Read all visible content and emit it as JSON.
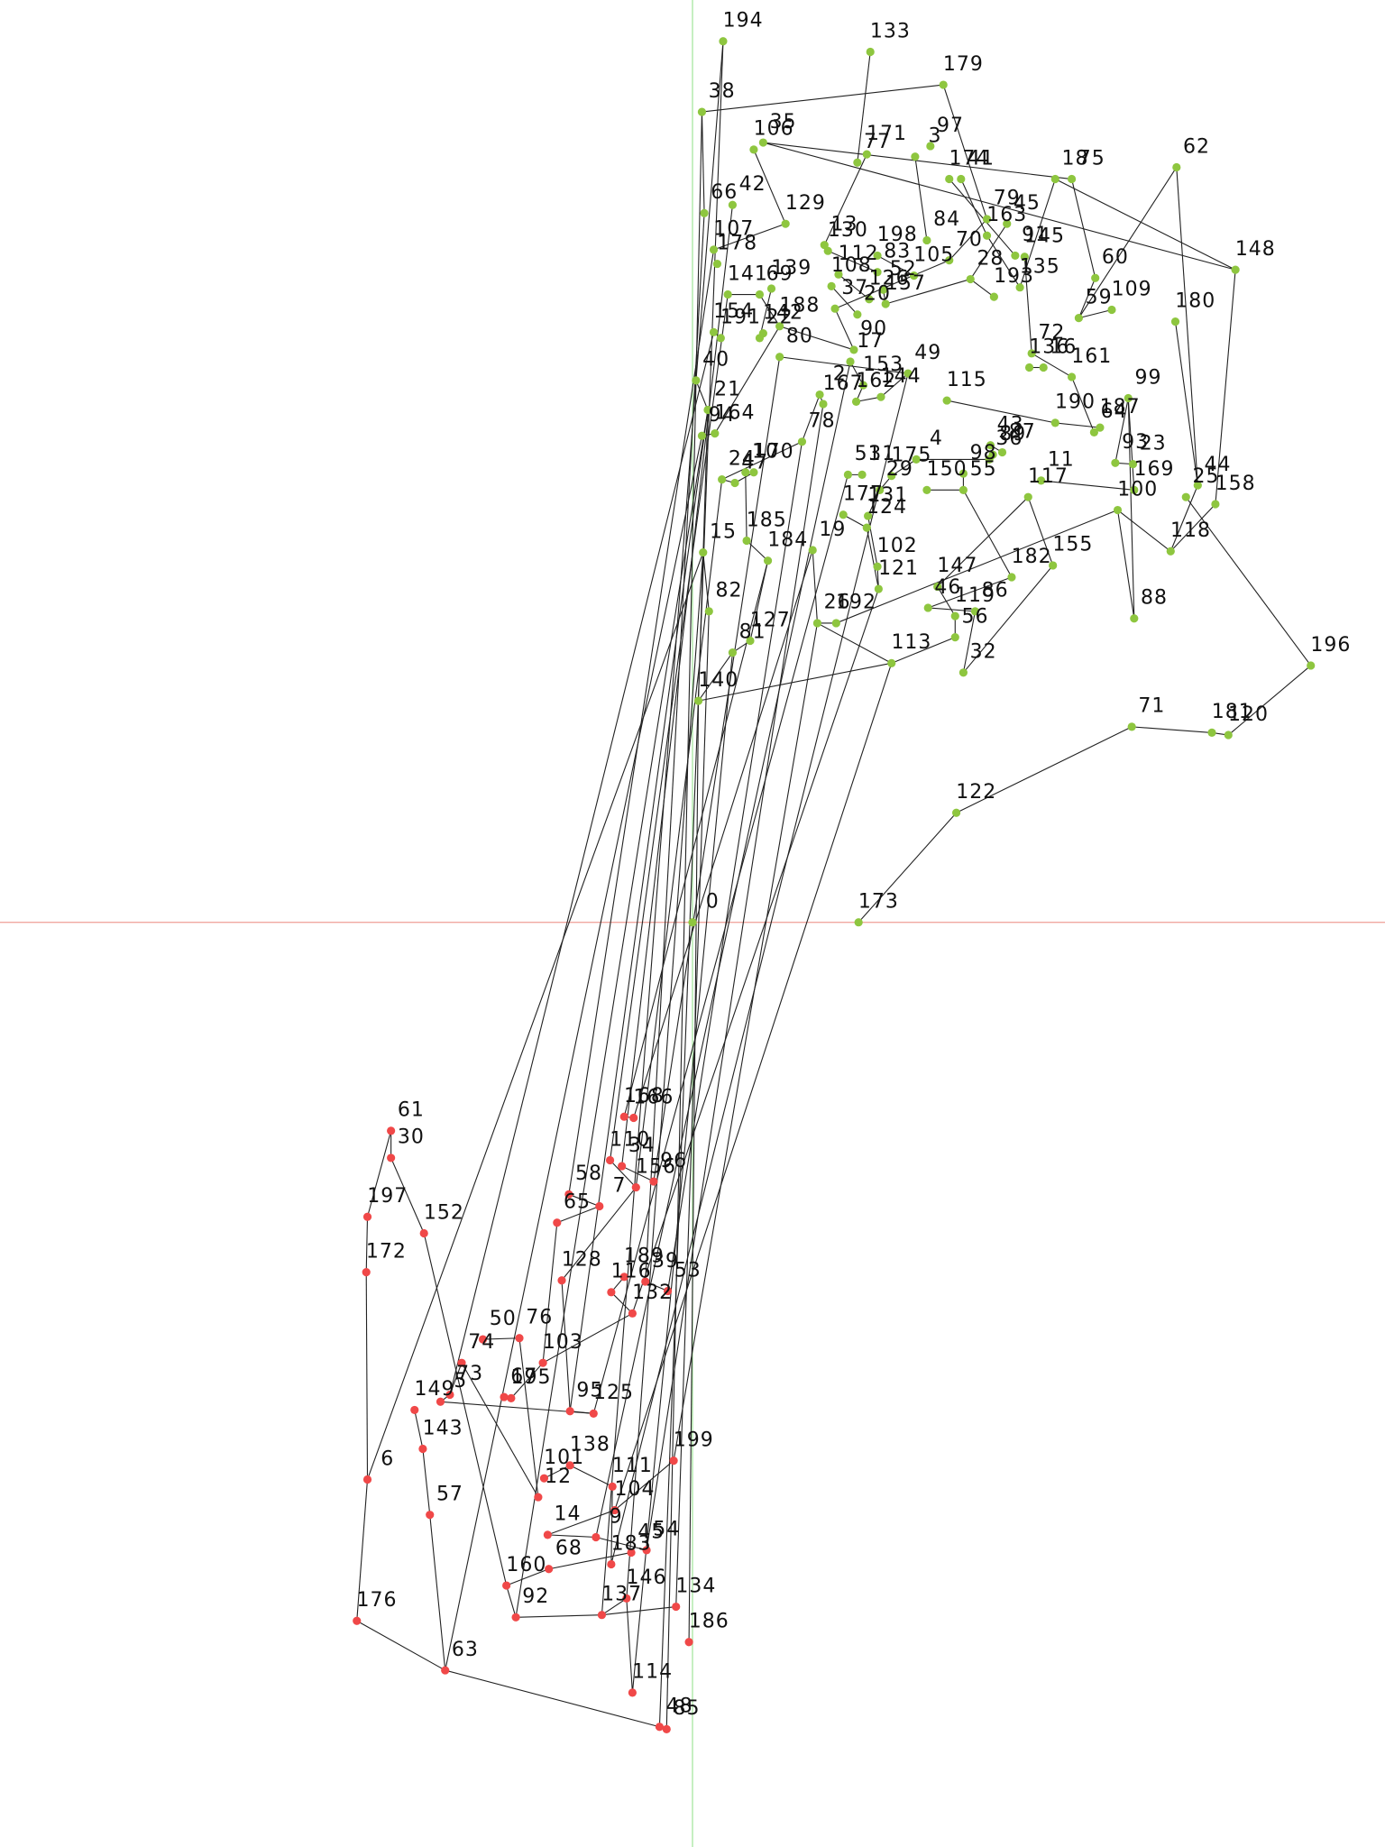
{
  "chart_data": {
    "type": "scatter",
    "xlim": [
      -588,
      588
    ],
    "ylim": [
      -785,
      783
    ],
    "x_axis_color": "#f0a8a0",
    "y_axis_color": "#a8e6a0",
    "edge_color": "#222222",
    "series": [
      {
        "color": "#8ec63f",
        "labels": [
          "194",
          "133",
          "179",
          "38",
          "35",
          "106",
          "171",
          "77",
          "97",
          "3",
          "174",
          "41",
          "75",
          "18",
          "62",
          "66",
          "42",
          "129",
          "79",
          "45",
          "163",
          "13",
          "130",
          "198",
          "84",
          "70",
          "91",
          "145",
          "107",
          "178",
          "112",
          "83",
          "105",
          "28",
          "135",
          "60",
          "141",
          "69",
          "139",
          "108",
          "52",
          "37",
          "157",
          "20",
          "126",
          "193",
          "59",
          "109",
          "148",
          "180",
          "154",
          "191",
          "22",
          "142",
          "188",
          "90",
          "17",
          "80",
          "72",
          "136",
          "16",
          "161",
          "49",
          "153",
          "40",
          "167",
          "2",
          "162",
          "144",
          "115",
          "99",
          "21",
          "190",
          "187",
          "64",
          "94",
          "164",
          "78",
          "43",
          "87",
          "89",
          "36",
          "93",
          "23",
          "4",
          "51",
          "31",
          "175",
          "98",
          "24",
          "47",
          "10",
          "170",
          "29",
          "150",
          "55",
          "11",
          "117",
          "169",
          "44",
          "25",
          "158",
          "100",
          "177",
          "131",
          "124",
          "15",
          "185",
          "184",
          "19",
          "102",
          "155",
          "182",
          "118",
          "121",
          "147",
          "46",
          "119",
          "86",
          "88",
          "82",
          "26",
          "192",
          "56",
          "127",
          "81",
          "113",
          "32",
          "196",
          "140",
          "71",
          "181",
          "120",
          "122",
          "173",
          "0"
        ],
        "x": [
          26,
          151,
          213,
          8,
          60,
          52,
          148,
          140,
          202,
          189,
          218,
          228,
          322,
          308,
          411,
          10,
          34,
          79,
          250,
          267,
          250,
          112,
          115,
          157,
          199,
          218,
          274,
          282,
          18,
          21,
          124,
          157,
          188,
          236,
          278,
          342,
          30,
          57,
          67,
          118,
          162,
          121,
          164,
          140,
          150,
          256,
          328,
          356,
          461,
          410,
          18,
          24,
          57,
          60,
          74,
          137,
          134,
          74,
          288,
          286,
          298,
          322,
          183,
          145,
          3,
          111,
          108,
          139,
          160,
          216,
          370,
          13,
          308,
          346,
          341,
          8,
          19,
          93,
          253,
          263,
          255,
          252,
          359,
          374,
          190,
          132,
          144,
          169,
          230,
          25,
          36,
          45,
          52,
          159,
          199,
          230,
          296,
          285,
          375,
          429,
          419,
          444,
          361,
          128,
          149,
          148,
          9,
          46,
          64,
          102,
          157,
          306,
          271,
          406,
          158,
          208,
          200,
          223,
          240,
          375,
          14,
          106,
          122,
          223,
          49,
          34,
          169,
          230,
          525,
          5,
          373,
          441,
          455,
          224,
          141,
          0
        ],
        "y": [
          748,
          739,
          711,
          688,
          662,
          656,
          652,
          645,
          659,
          650,
          631,
          631,
          631,
          631,
          641,
          602,
          609,
          593,
          597,
          593,
          583,
          575,
          570,
          566,
          579,
          562,
          566,
          565,
          571,
          559,
          550,
          552,
          549,
          546,
          539,
          547,
          533,
          533,
          538,
          540,
          537,
          521,
          525,
          516,
          529,
          531,
          513,
          520,
          554,
          510,
          501,
          496,
          496,
          500,
          506,
          486,
          476,
          480,
          483,
          471,
          471,
          463,
          466,
          456,
          460,
          440,
          448,
          442,
          446,
          443,
          445,
          435,
          424,
          420,
          416,
          413,
          415,
          408,
          405,
          399,
          397,
          393,
          390,
          389,
          393,
          380,
          380,
          379,
          381,
          376,
          373,
          382,
          382,
          367,
          367,
          367,
          375,
          361,
          367,
          371,
          361,
          355,
          350,
          346,
          345,
          335,
          314,
          324,
          307,
          316,
          302,
          303,
          293,
          315,
          283,
          285,
          267,
          260,
          264,
          258,
          264,
          254,
          254,
          242,
          239,
          229,
          220,
          212,
          218,
          188,
          166,
          161,
          159,
          93,
          0,
          0
        ]
      },
      {
        "color": "#f04848",
        "labels": [
          "61",
          "30",
          "197",
          "152",
          "172",
          "168",
          "166",
          "110",
          "34",
          "58",
          "7",
          "156",
          "96",
          "65",
          "128",
          "189",
          "39",
          "116",
          "53",
          "132",
          "50",
          "76",
          "74",
          "103",
          "73",
          "67",
          "195",
          "95",
          "125",
          "149",
          "5",
          "143",
          "6",
          "101",
          "138",
          "12",
          "199",
          "111",
          "104",
          "57",
          "14",
          "9",
          "45",
          "54",
          "183",
          "68",
          "160",
          "146",
          "134",
          "92",
          "137",
          "186",
          "176",
          "63",
          "114",
          "48",
          "85"
        ],
        "x": [
          -256,
          -256,
          -276,
          -228,
          -277,
          -58,
          -50,
          -70,
          -60,
          -105,
          -79,
          -48,
          -33,
          -115,
          -111,
          -58,
          -40,
          -69,
          -21,
          -51,
          -178,
          -147,
          -196,
          -127,
          -206,
          -160,
          -154,
          -104,
          -84,
          -236,
          -214,
          -229,
          -276,
          -126,
          -104,
          -131,
          -16,
          -68,
          -66,
          -223,
          -123,
          -82,
          -52,
          -39,
          -69,
          -122,
          -158,
          -56,
          -14,
          -150,
          -77,
          -3,
          -285,
          -210,
          -51,
          -28,
          -22
        ],
        "y": [
          -177,
          -200,
          -250,
          -264,
          -297,
          -165,
          -166,
          -202,
          -207,
          -231,
          -241,
          -225,
          -220,
          -255,
          -304,
          -301,
          -305,
          -314,
          -313,
          -332,
          -354,
          -353,
          -374,
          -374,
          -401,
          -403,
          -404,
          -415,
          -417,
          -414,
          -407,
          -447,
          -473,
          -472,
          -461,
          -488,
          -457,
          -479,
          -499,
          -503,
          -520,
          -522,
          -535,
          -533,
          -545,
          -549,
          -563,
          -574,
          -581,
          -590,
          -588,
          -611,
          -593,
          -635,
          -654,
          -683,
          -685
        ]
      }
    ],
    "edges": [
      [
        134,
        133
      ],
      [
        133,
        130
      ],
      [
        130,
        131
      ],
      [
        131,
        132
      ],
      [
        132,
        128
      ],
      [
        128,
        100
      ],
      [
        99,
        113
      ],
      [
        101,
        113
      ],
      [
        48,
        101
      ],
      [
        48,
        13
      ],
      [
        14,
        99
      ],
      [
        14,
        46
      ],
      [
        49,
        99
      ],
      [
        113,
        102
      ],
      [
        2,
        3
      ],
      [
        2,
        18
      ],
      [
        0,
        64
      ],
      [
        1,
        7
      ],
      [
        4,
        48
      ],
      [
        3,
        15
      ],
      [
        4,
        12
      ],
      [
        12,
        35
      ],
      [
        35,
        46
      ],
      [
        13,
        34
      ],
      [
        5,
        17
      ],
      [
        17,
        28
      ],
      [
        6,
        21
      ],
      [
        9,
        24
      ],
      [
        10,
        26
      ],
      [
        11,
        20
      ],
      [
        18,
        25
      ],
      [
        19,
        33
      ],
      [
        20,
        34
      ],
      [
        22,
        31
      ],
      [
        23,
        32
      ],
      [
        25,
        41
      ],
      [
        27,
        58
      ],
      [
        30,
        44
      ],
      [
        33,
        45
      ],
      [
        36,
        37
      ],
      [
        37,
        54
      ],
      [
        38,
        52
      ],
      [
        39,
        43
      ],
      [
        40,
        42
      ],
      [
        41,
        55
      ],
      [
        42,
        33
      ],
      [
        47,
        46
      ],
      [
        50,
        51
      ],
      [
        52,
        53
      ],
      [
        54,
        55
      ],
      [
        56,
        63
      ],
      [
        57,
        62
      ],
      [
        58,
        61
      ],
      [
        59,
        60
      ],
      [
        61,
        74
      ],
      [
        62,
        68
      ],
      [
        63,
        67
      ],
      [
        64,
        71
      ],
      [
        65,
        66
      ],
      [
        66,
        77
      ],
      [
        67,
        68
      ],
      [
        69,
        72
      ],
      [
        70,
        82
      ],
      [
        72,
        73
      ],
      [
        73,
        74
      ],
      [
        75,
        76
      ],
      [
        76,
        54
      ],
      [
        77,
        89
      ],
      [
        78,
        79
      ],
      [
        80,
        81
      ],
      [
        81,
        84
      ],
      [
        82,
        83
      ],
      [
        84,
        87
      ],
      [
        85,
        86
      ],
      [
        87,
        93
      ],
      [
        88,
        95
      ],
      [
        89,
        90
      ],
      [
        90,
        92
      ],
      [
        91,
        107
      ],
      [
        93,
        104
      ],
      [
        94,
        95
      ],
      [
        95,
        112
      ],
      [
        96,
        98
      ],
      [
        97,
        115
      ],
      [
        98,
        70
      ],
      [
        102,
        119
      ],
      [
        103,
        105
      ],
      [
        104,
        110
      ],
      [
        105,
        114
      ],
      [
        106,
        120
      ],
      [
        107,
        108
      ],
      [
        108,
        124
      ],
      [
        109,
        121
      ],
      [
        110,
        114
      ],
      [
        111,
        97
      ],
      [
        112,
        116
      ],
      [
        115,
        117
      ],
      [
        116,
        118
      ],
      [
        117,
        123
      ],
      [
        118,
        127
      ],
      [
        119,
        70
      ],
      [
        121,
        122
      ],
      [
        122,
        102
      ],
      [
        123,
        126
      ],
      [
        124,
        125
      ],
      [
        125,
        129
      ],
      [
        126,
        129
      ],
      [
        126,
        121
      ],
      [
        127,
        111
      ],
      [
        129,
        71
      ],
      [
        136,
        137
      ],
      [
        136,
        138
      ],
      [
        137,
        139
      ],
      [
        138,
        140
      ],
      [
        139,
        182
      ],
      [
        141,
        142
      ],
      [
        143,
        147
      ],
      [
        144,
        148
      ],
      [
        145,
        146
      ],
      [
        146,
        149
      ],
      [
        147,
        150
      ],
      [
        149,
        159
      ],
      [
        150,
        163
      ],
      [
        151,
        153
      ],
      [
        152,
        154
      ],
      [
        153,
        155
      ],
      [
        155,
        159
      ],
      [
        156,
        157
      ],
      [
        158,
        160
      ],
      [
        158,
        171
      ],
      [
        159,
        162
      ],
      [
        160,
        166
      ],
      [
        161,
        162
      ],
      [
        163,
        164
      ],
      [
        165,
        167
      ],
      [
        166,
        164
      ],
      [
        167,
        175
      ],
      [
        168,
        188
      ],
      [
        169,
        170
      ],
      [
        170,
        173
      ],
      [
        172,
        174
      ],
      [
        173,
        180
      ],
      [
        174,
        176
      ],
      [
        176,
        177
      ],
      [
        177,
        179
      ],
      [
        178,
        181
      ],
      [
        181,
        182
      ],
      [
        182,
        185
      ],
      [
        183,
        186
      ],
      [
        184,
        186
      ],
      [
        185,
        186
      ],
      [
        188,
        189
      ],
      [
        189,
        191
      ],
      [
        190,
        183
      ],
      [
        191,
        192
      ],
      [
        175,
        189
      ],
      [
        171,
        157
      ],
      [
        140,
        168
      ],
      [
        191,
        0
      ],
      [
        192,
        3
      ],
      [
        187,
        129
      ],
      [
        184,
        120
      ],
      [
        172,
        121
      ],
      [
        190,
        125
      ],
      [
        183,
        106
      ],
      [
        186,
        64
      ],
      [
        185,
        71
      ],
      [
        189,
        75
      ],
      [
        168,
        106
      ],
      [
        160,
        50
      ],
      [
        141,
        108
      ],
      [
        142,
        109
      ],
      [
        143,
        36
      ],
      [
        144,
        16
      ],
      [
        145,
        28
      ],
      [
        147,
        89
      ],
      [
        148,
        57
      ],
      [
        152,
        15
      ],
      [
        154,
        77
      ],
      [
        155,
        114
      ],
      [
        164,
        85
      ],
      [
        163,
        71
      ],
      [
        174,
        126
      ],
      [
        179,
        65
      ],
      [
        180,
        62
      ],
      [
        177,
        56
      ]
    ]
  }
}
